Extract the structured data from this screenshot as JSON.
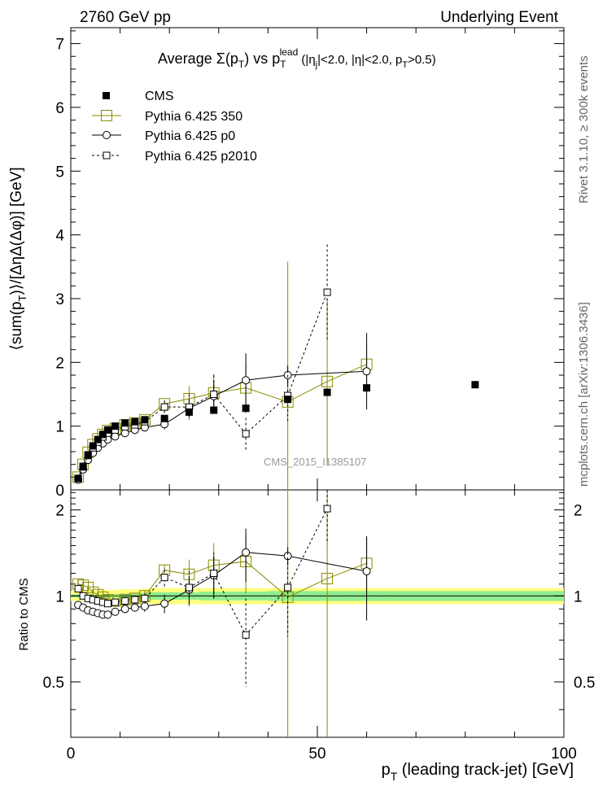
{
  "header": {
    "left": "2760 GeV pp",
    "right": "Underlying Event"
  },
  "side_labels": {
    "rivet": "Rivet 3.1.10, ≥ 300k events",
    "mcplots": "mcplots.cern.ch [arXiv:1306.3436]"
  },
  "title_parts": {
    "average": "Average",
    "sigma": "Σ(p",
    "sub_t": "T",
    "vs": ") vs p",
    "sup_lead": "lead",
    "cuts_a": " (|η",
    "sub_j": "j",
    "cuts_b": "|<2.0, |η|<2.0, p",
    "cuts_c": ">0.5)"
  },
  "ylabel_main": "⟨sum(p_T)⟩/[ΔηΔ(Δφ)] [GeV]",
  "ylabel_parts": {
    "a": "⟨sum(p",
    "t": "T",
    "b": ")⟩/[ΔηΔ(Δφ)] [GeV]"
  },
  "ylabel_ratio": "Ratio to CMS",
  "xlabel_parts": {
    "p": "p",
    "t": "T",
    "rest": " (leading track-jet) [GeV]"
  },
  "watermark": "CMS_2015_I1385107",
  "legend": [
    {
      "label": "CMS",
      "style": "cms"
    },
    {
      "label": "Pythia 6.425 350",
      "style": "p350"
    },
    {
      "label": "Pythia 6.425 p0",
      "style": "p0"
    },
    {
      "label": "Pythia 6.425 p2010",
      "style": "p2010"
    }
  ],
  "colors": {
    "cms": "#000000",
    "p350": "#8b8b00",
    "p0": "#000000",
    "p2010": "#000000",
    "band_inner": "#90ee90",
    "band_outer": "#ffff80",
    "watermark": "#999999",
    "side": "#666666"
  },
  "chart_data": {
    "type": "scatter",
    "main": {
      "xlim": [
        0,
        100
      ],
      "ylim": [
        0,
        7.25
      ],
      "yticks": [
        0,
        1,
        2,
        3,
        4,
        5,
        6,
        7
      ],
      "series": [
        {
          "name": "CMS",
          "x": [
            1.5,
            2.5,
            3.5,
            4.5,
            5.5,
            6.5,
            7.5,
            9,
            11,
            13,
            15,
            19,
            24,
            29,
            35.5,
            44,
            52,
            60,
            82
          ],
          "y": [
            0.18,
            0.37,
            0.55,
            0.69,
            0.79,
            0.87,
            0.94,
            1.0,
            1.05,
            1.07,
            1.1,
            1.12,
            1.22,
            1.25,
            1.28,
            1.42,
            1.53,
            1.6,
            1.65
          ],
          "err": [
            0.01,
            0.01,
            0.01,
            0.01,
            0.01,
            0.01,
            0.01,
            0.01,
            0.01,
            0.01,
            0.01,
            0.02,
            0.02,
            0.03,
            0.04,
            0.05,
            0.06,
            0.07,
            0.05
          ]
        },
        {
          "name": "Pythia 6.425 350",
          "x": [
            1.5,
            2.5,
            3.5,
            4.5,
            5.5,
            6.5,
            7.5,
            9,
            11,
            13,
            15,
            19,
            24,
            29,
            35.5,
            44,
            52,
            60
          ],
          "y": [
            0.2,
            0.4,
            0.59,
            0.71,
            0.8,
            0.87,
            0.93,
            0.96,
            1.02,
            1.05,
            1.1,
            1.35,
            1.43,
            1.52,
            1.6,
            1.38,
            1.7,
            1.97
          ],
          "err": [
            0.01,
            0.01,
            0.01,
            0.01,
            0.02,
            0.02,
            0.02,
            0.02,
            0.03,
            0.04,
            0.05,
            0.06,
            0.2,
            0.3,
            0.4,
            2.2,
            1.3,
            0.3
          ]
        },
        {
          "name": "Pythia 6.425 p0",
          "x": [
            1.5,
            2.5,
            3.5,
            4.5,
            5.5,
            6.5,
            7.5,
            9,
            11,
            13,
            15,
            19,
            24,
            29,
            35.5,
            44,
            60
          ],
          "y": [
            0.16,
            0.32,
            0.47,
            0.58,
            0.66,
            0.73,
            0.79,
            0.84,
            0.89,
            0.94,
            0.98,
            1.03,
            1.28,
            1.47,
            1.72,
            1.8,
            1.86
          ],
          "err": [
            0.01,
            0.01,
            0.01,
            0.01,
            0.01,
            0.01,
            0.01,
            0.02,
            0.02,
            0.03,
            0.04,
            0.08,
            0.15,
            0.25,
            0.42,
            0.15,
            0.6
          ]
        },
        {
          "name": "Pythia 6.425 p2010",
          "x": [
            1.5,
            2.5,
            3.5,
            4.5,
            5.5,
            6.5,
            7.5,
            9,
            11,
            13,
            15,
            19,
            24,
            29,
            35.5,
            44,
            52
          ],
          "y": [
            0.18,
            0.36,
            0.54,
            0.66,
            0.75,
            0.83,
            0.89,
            0.94,
            0.99,
            1.02,
            1.07,
            1.3,
            1.3,
            1.5,
            0.88,
            1.48,
            3.1
          ],
          "err": [
            0.01,
            0.01,
            0.01,
            0.01,
            0.01,
            0.02,
            0.02,
            0.02,
            0.03,
            0.04,
            0.05,
            0.1,
            0.2,
            0.3,
            0.25,
            0.4,
            0.75
          ]
        }
      ]
    },
    "ratio": {
      "xlim": [
        0,
        100
      ],
      "ylim": [
        0.32,
        2.35
      ],
      "yticks": [
        0.5,
        1,
        2
      ],
      "band_edges": [
        0,
        1,
        2,
        3,
        4,
        5,
        6,
        7,
        8,
        10,
        12,
        14,
        16,
        22,
        26,
        32,
        40,
        48,
        56,
        64,
        100
      ],
      "band_inner": [
        0.012,
        0.012,
        0.012,
        0.012,
        0.012,
        0.012,
        0.012,
        0.015,
        0.015,
        0.018,
        0.02,
        0.025,
        0.03,
        0.03,
        0.035,
        0.035,
        0.04,
        0.04,
        0.04,
        0.04
      ],
      "band_outer": [
        0.04,
        0.04,
        0.04,
        0.045,
        0.045,
        0.045,
        0.05,
        0.05,
        0.05,
        0.055,
        0.055,
        0.06,
        0.065,
        0.065,
        0.065,
        0.065,
        0.065,
        0.065,
        0.065,
        0.065
      ],
      "series": [
        {
          "name": "Pythia 6.425 350",
          "x": [
            1.5,
            2.5,
            3.5,
            4.5,
            5.5,
            6.5,
            7.5,
            9,
            11,
            13,
            15,
            19,
            24,
            29,
            35.5,
            44,
            52,
            60
          ],
          "y": [
            1.1,
            1.09,
            1.07,
            1.03,
            1.01,
            0.99,
            0.97,
            0.96,
            0.97,
            0.98,
            1.0,
            1.23,
            1.19,
            1.28,
            1.32,
            0.99,
            1.15,
            1.3
          ],
          "err": [
            0.03,
            0.03,
            0.02,
            0.02,
            0.02,
            0.02,
            0.02,
            0.02,
            0.03,
            0.03,
            0.04,
            0.05,
            0.15,
            0.25,
            0.3,
            1.5,
            1.2,
            0.3
          ]
        },
        {
          "name": "Pythia 6.425 p0",
          "x": [
            1.5,
            2.5,
            3.5,
            4.5,
            5.5,
            6.5,
            7.5,
            9,
            11,
            13,
            15,
            19,
            24,
            29,
            35.5,
            44,
            60
          ],
          "y": [
            0.93,
            0.91,
            0.89,
            0.88,
            0.87,
            0.86,
            0.86,
            0.88,
            0.9,
            0.91,
            0.92,
            0.94,
            1.05,
            1.18,
            1.42,
            1.38,
            1.22
          ],
          "err": [
            0.01,
            0.01,
            0.01,
            0.01,
            0.01,
            0.01,
            0.01,
            0.02,
            0.02,
            0.03,
            0.04,
            0.07,
            0.12,
            0.2,
            0.3,
            0.1,
            0.4
          ]
        },
        {
          "name": "Pythia 6.425 p2010",
          "x": [
            1.5,
            2.5,
            3.5,
            4.5,
            5.5,
            6.5,
            7.5,
            9,
            11,
            13,
            15,
            19,
            24,
            29,
            35.5,
            44,
            52
          ],
          "y": [
            1.06,
            1.0,
            0.98,
            0.97,
            0.96,
            0.95,
            0.94,
            0.95,
            0.96,
            0.97,
            0.98,
            1.16,
            1.07,
            1.2,
            0.73,
            1.07,
            2.02
          ],
          "err": [
            0.02,
            0.02,
            0.02,
            0.02,
            0.02,
            0.02,
            0.02,
            0.02,
            0.03,
            0.03,
            0.04,
            0.08,
            0.15,
            0.22,
            0.25,
            0.35,
            0.5
          ]
        }
      ]
    },
    "xticks": [
      0,
      50,
      100
    ]
  }
}
